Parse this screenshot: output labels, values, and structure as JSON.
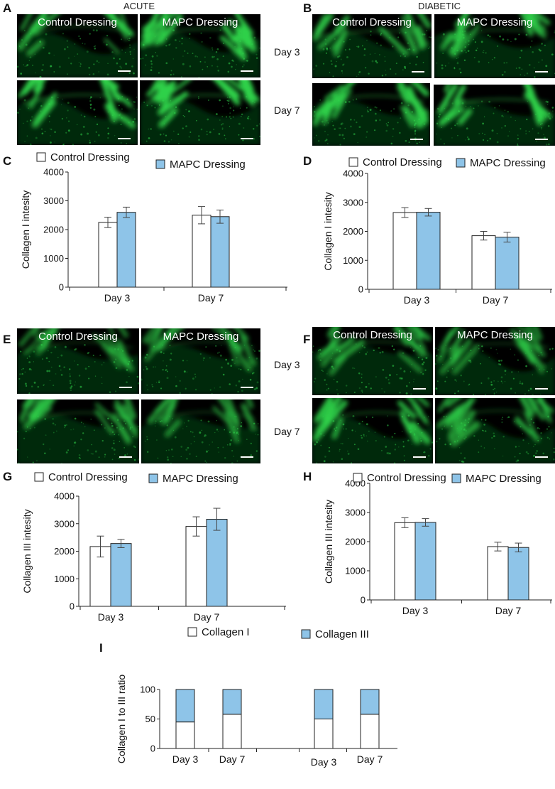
{
  "figure": {
    "panel_letters": [
      "A",
      "B",
      "C",
      "D",
      "E",
      "F",
      "G",
      "H",
      "I"
    ],
    "top_titles": {
      "acute": "ACUTE",
      "diabetic": "DIABETIC"
    },
    "image_labels": {
      "control": "Control Dressing",
      "mapc": "MAPC Dressing"
    },
    "day_labels": {
      "day3": "Day 3",
      "day7": "Day 7"
    },
    "colors": {
      "tissue_green": "#2fd14a",
      "bar_blue": "#8ec4e8",
      "bar_white": "#ffffff",
      "background": "#000000"
    }
  },
  "chart_data": [
    {
      "panel": "C",
      "type": "bar",
      "categories": [
        "Day 3",
        "Day 7"
      ],
      "series": [
        {
          "name": "Control Dressing",
          "values": [
            2250,
            2500
          ],
          "errors": [
            180,
            300
          ],
          "color": "#ffffff"
        },
        {
          "name": "MAPC Dressing",
          "values": [
            2600,
            2450
          ],
          "errors": [
            180,
            230
          ],
          "color": "#8ec4e8"
        }
      ],
      "ylabel": "Collagen I intesity",
      "ylim": [
        0,
        4000
      ],
      "yticks": [
        0,
        1000,
        2000,
        3000,
        4000
      ],
      "legend": "top"
    },
    {
      "panel": "D",
      "type": "bar",
      "categories": [
        "Day 3",
        "Day 7"
      ],
      "series": [
        {
          "name": "Control Dressing",
          "values": [
            2650,
            1850
          ],
          "errors": [
            170,
            150
          ],
          "color": "#ffffff"
        },
        {
          "name": "MAPC Dressing",
          "values": [
            2660,
            1800
          ],
          "errors": [
            130,
            170
          ],
          "color": "#8ec4e8"
        }
      ],
      "ylabel": "Collagen I intesity",
      "ylim": [
        0,
        4000
      ],
      "yticks": [
        0,
        1000,
        2000,
        3000,
        4000
      ],
      "legend": "top"
    },
    {
      "panel": "G",
      "type": "bar",
      "categories": [
        "Day 3",
        "Day 7"
      ],
      "series": [
        {
          "name": "Control Dressing",
          "values": [
            2170,
            2900
          ],
          "errors": [
            380,
            350
          ],
          "color": "#ffffff"
        },
        {
          "name": "MAPC Dressing",
          "values": [
            2280,
            3160
          ],
          "errors": [
            150,
            400
          ],
          "color": "#8ec4e8"
        }
      ],
      "ylabel": "Collagen III intesity",
      "ylim": [
        0,
        4000
      ],
      "yticks": [
        0,
        1000,
        2000,
        3000,
        4000
      ],
      "legend": "top"
    },
    {
      "panel": "H",
      "type": "bar",
      "categories": [
        "Day 3",
        "Day 7"
      ],
      "series": [
        {
          "name": "Control Dressing",
          "values": [
            2650,
            1830
          ],
          "errors": [
            170,
            150
          ],
          "color": "#ffffff"
        },
        {
          "name": "MAPC Dressing",
          "values": [
            2660,
            1800
          ],
          "errors": [
            130,
            150
          ],
          "color": "#8ec4e8"
        }
      ],
      "ylabel": "Collagen III intesity",
      "ylim": [
        0,
        4000
      ],
      "yticks": [
        0,
        1000,
        2000,
        3000,
        4000
      ],
      "legend": "top"
    },
    {
      "panel": "I",
      "type": "bar",
      "stacked": true,
      "categories": [
        "Day 3",
        "Day 7",
        "Day 3",
        "Day 7"
      ],
      "series": [
        {
          "name": "Collagen I",
          "values": [
            45,
            58,
            50,
            58
          ],
          "color": "#ffffff"
        },
        {
          "name": "Collagen III",
          "values": [
            55,
            42,
            50,
            42
          ],
          "color": "#8ec4e8"
        }
      ],
      "ylabel": "Collagen I to III ratio",
      "ylim": [
        0,
        100
      ],
      "yticks": [
        0,
        50,
        100
      ],
      "legend": "top"
    }
  ]
}
